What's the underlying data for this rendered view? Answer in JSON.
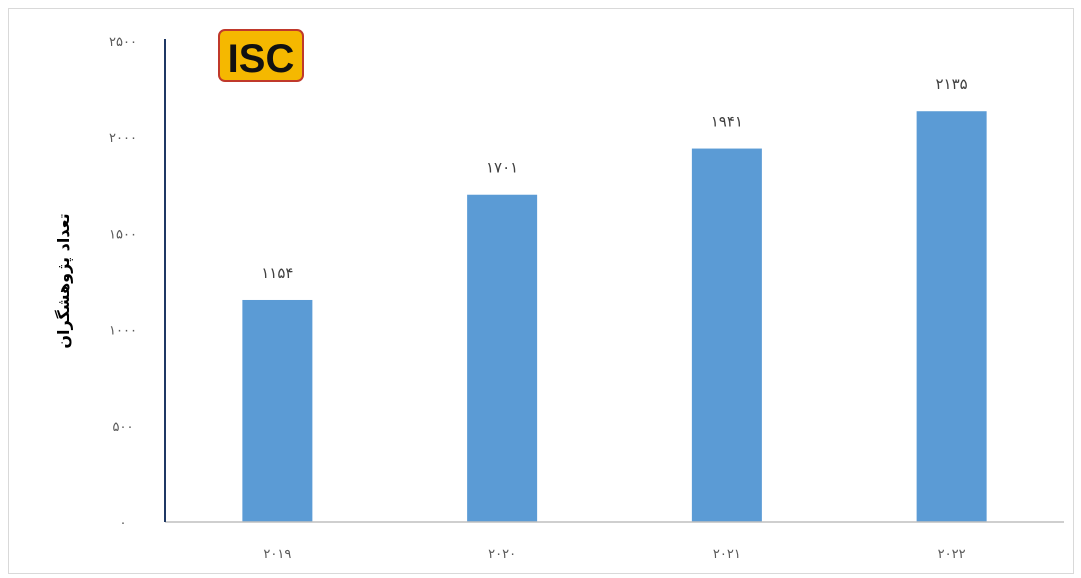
{
  "chart_data": {
    "type": "bar",
    "categories": [
      "۲۰۱۹",
      "۲۰۲۰",
      "۲۰۲۱",
      "۲۰۲۲"
    ],
    "values": [
      1154,
      1701,
      1941,
      2135
    ],
    "value_labels": [
      "۱۱۵۴",
      "۱۷۰۱",
      "۱۹۴۱",
      "۲۱۳۵"
    ],
    "ylabel": "تعداد پژوهشگران",
    "xlabel": "",
    "title": "",
    "ylim": [
      0,
      2500
    ],
    "yticks": [
      0,
      500,
      1000,
      1500,
      2000,
      2500
    ],
    "ytick_labels": [
      "۰",
      "۵۰۰",
      "۱۰۰۰",
      "۱۵۰۰",
      "۲۰۰۰",
      "۲۵۰۰"
    ],
    "grid": false,
    "legend": "none",
    "colors": {
      "bar": "#5b9bd5",
      "y_axis": "#1f3864",
      "x_axis": "#bfbfbf"
    }
  },
  "logo": {
    "text": "ISC",
    "colors": {
      "background": "#f5b800",
      "border": "#c0392b",
      "text": "#111111"
    }
  }
}
